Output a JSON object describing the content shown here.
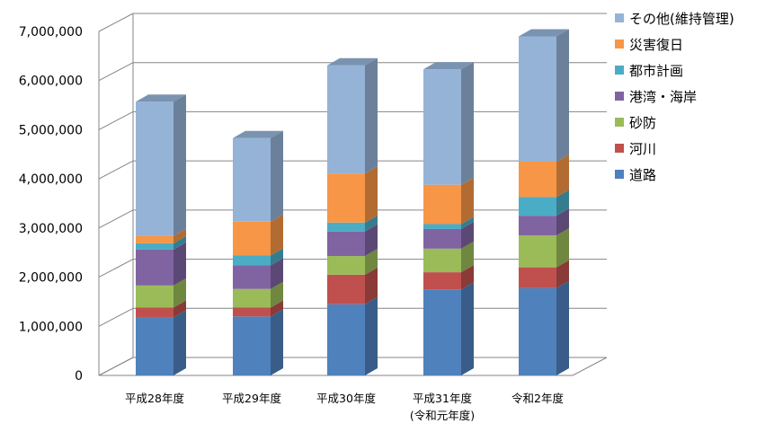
{
  "chart_data": {
    "type": "bar",
    "stacked": true,
    "three_d": true,
    "categories": [
      "平成28年度",
      "平成29年度",
      "平成30年度",
      "平成31年度",
      "令和2年度"
    ],
    "category_sublabels": [
      "",
      "",
      "",
      "(令和元年度)",
      ""
    ],
    "ylim": [
      0,
      7000000
    ],
    "yticks": [
      "0",
      "1,000,000",
      "2,000,000",
      "3,000,000",
      "4,000,000",
      "5,000,000",
      "6,000,000",
      "7,000,000"
    ],
    "legend_position": "right",
    "series": [
      {
        "name": "道路",
        "color": "#4F81BD",
        "values": [
          1180000,
          1200000,
          1450000,
          1750000,
          1780000
        ]
      },
      {
        "name": "河川",
        "color": "#C0504D",
        "values": [
          200000,
          180000,
          600000,
          350000,
          420000
        ]
      },
      {
        "name": "砂防",
        "color": "#9BBB59",
        "values": [
          450000,
          380000,
          380000,
          480000,
          650000
        ]
      },
      {
        "name": "港湾・海岸",
        "color": "#8064A2",
        "values": [
          730000,
          480000,
          500000,
          400000,
          400000
        ]
      },
      {
        "name": "都市計画",
        "color": "#4BACC6",
        "values": [
          130000,
          200000,
          180000,
          100000,
          380000
        ]
      },
      {
        "name": "災害復日",
        "color": "#F79646",
        "values": [
          150000,
          690000,
          1000000,
          800000,
          720000
        ]
      },
      {
        "name": "その他(維持管理)",
        "color": "#95B3D7",
        "values": [
          2730000,
          1700000,
          2200000,
          2350000,
          2550000
        ]
      }
    ]
  }
}
